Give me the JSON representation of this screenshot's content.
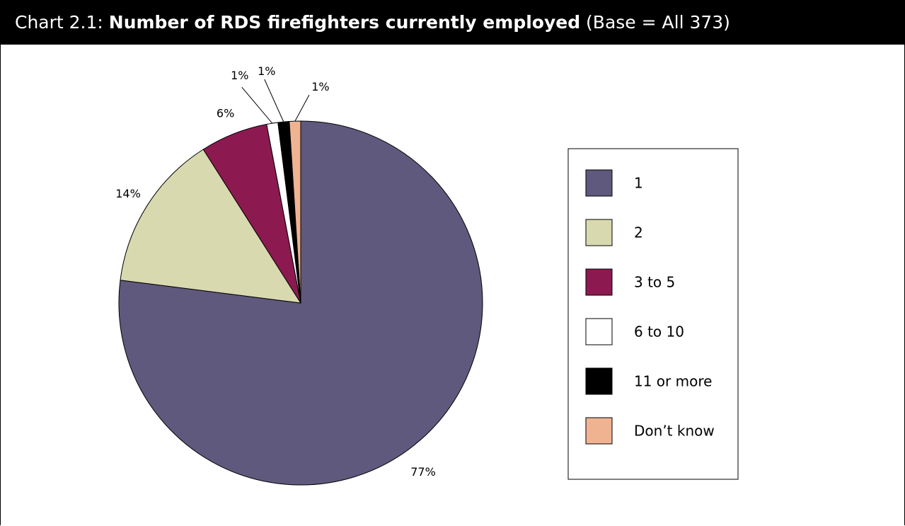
{
  "title": {
    "prefix": "Chart 2.1: ",
    "main": "Number of RDS firefighters currently employed",
    "suffix": " (Base = All 373)"
  },
  "chart_data": {
    "type": "pie",
    "title": "Number of RDS firefighters currently employed",
    "subtitle": "Base = All 373",
    "legend_position": "right",
    "slices": [
      {
        "label": "1",
        "value": 77,
        "display": "77%",
        "color": "#5f597d"
      },
      {
        "label": "2",
        "value": 14,
        "display": "14%",
        "color": "#d9d9b0"
      },
      {
        "label": "3 to 5",
        "value": 6,
        "display": "6%",
        "color": "#8c1a51"
      },
      {
        "label": "6 to 10",
        "value": 1,
        "display": "1%",
        "color": "#ffffff"
      },
      {
        "label": "11 or more",
        "value": 1,
        "display": "1%",
        "color": "#000000"
      },
      {
        "label": "Don’t know",
        "value": 1,
        "display": "1%",
        "color": "#f0b392"
      }
    ]
  }
}
